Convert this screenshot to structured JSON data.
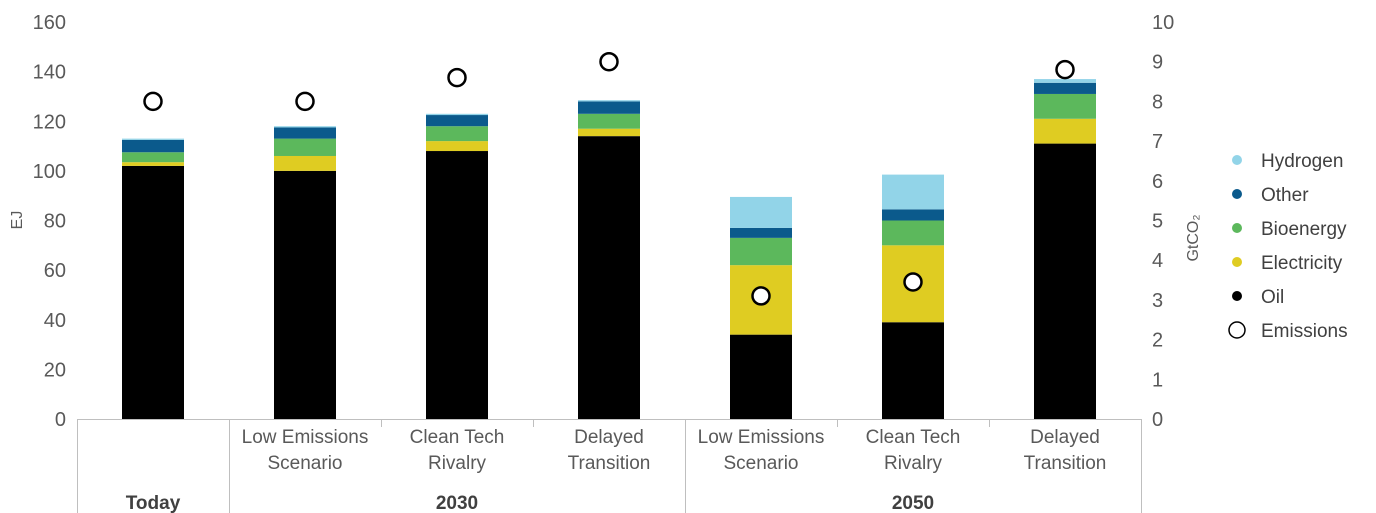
{
  "chart_data": {
    "type": "bar",
    "stacked": true,
    "xlabel": "",
    "ylabel": "EJ",
    "y2label": "GtCO₂",
    "ylim": [
      0,
      160
    ],
    "y2lim": [
      0,
      10
    ],
    "yticks": [
      "0",
      "20",
      "40",
      "60",
      "80",
      "100",
      "120",
      "140",
      "160"
    ],
    "y2ticks": [
      "0",
      "1",
      "2",
      "3",
      "4",
      "5",
      "6",
      "7",
      "8",
      "9",
      "10"
    ],
    "grid": false,
    "legend_position": "right",
    "categories": [
      {
        "label": "",
        "group": "Today"
      },
      {
        "label": "Low Emissions Scenario",
        "label_lines": [
          "Low Emissions",
          "Scenario"
        ],
        "group": "2030"
      },
      {
        "label": "Clean Tech Rivalry",
        "label_lines": [
          "Clean Tech",
          "Rivalry"
        ],
        "group": "2030"
      },
      {
        "label": "Delayed Transition",
        "label_lines": [
          "Delayed",
          "Transition"
        ],
        "group": "2030"
      },
      {
        "label": "Low Emissions Scenario",
        "label_lines": [
          "Low Emissions",
          "Scenario"
        ],
        "group": "2050"
      },
      {
        "label": "Clean Tech Rivalry",
        "label_lines": [
          "Clean Tech",
          "Rivalry"
        ],
        "group": "2050"
      },
      {
        "label": "Delayed Transition",
        "label_lines": [
          "Delayed",
          "Transition"
        ],
        "group": "2050"
      }
    ],
    "groups": [
      {
        "name": "Today",
        "span": [
          0,
          0
        ]
      },
      {
        "name": "2030",
        "span": [
          1,
          3
        ]
      },
      {
        "name": "2050",
        "span": [
          4,
          6
        ]
      }
    ],
    "series": [
      {
        "name": "Oil",
        "color": "#000000",
        "values": [
          102,
          100,
          108,
          114,
          34,
          39,
          111
        ]
      },
      {
        "name": "Electricity",
        "color": "#dfcc22",
        "values": [
          1.5,
          6,
          4,
          3,
          28,
          31,
          10
        ]
      },
      {
        "name": "Bioenergy",
        "color": "#5cb85c",
        "values": [
          4,
          7,
          6,
          6,
          11,
          10,
          10
        ]
      },
      {
        "name": "Other",
        "color": "#0b5a8c",
        "values": [
          5,
          4.5,
          4.5,
          5,
          4,
          4.5,
          4.5
        ]
      },
      {
        "name": "Hydrogen",
        "color": "#92d4e8",
        "values": [
          0.5,
          0.5,
          0.5,
          0.5,
          12.5,
          14,
          1.5
        ]
      }
    ],
    "emissions": {
      "name": "Emissions",
      "axis": "right",
      "values": [
        8.0,
        8.0,
        8.6,
        9.0,
        3.1,
        3.45,
        8.8
      ]
    },
    "legend": [
      {
        "name": "Hydrogen",
        "color": "#92d4e8",
        "marker": "dot"
      },
      {
        "name": "Other",
        "color": "#0b5a8c",
        "marker": "dot"
      },
      {
        "name": "Bioenergy",
        "color": "#5cb85c",
        "marker": "dot"
      },
      {
        "name": "Electricity",
        "color": "#dfcc22",
        "marker": "dot"
      },
      {
        "name": "Oil",
        "color": "#000000",
        "marker": "dot"
      },
      {
        "name": "Emissions",
        "color": "#000000",
        "marker": "ring"
      }
    ]
  }
}
